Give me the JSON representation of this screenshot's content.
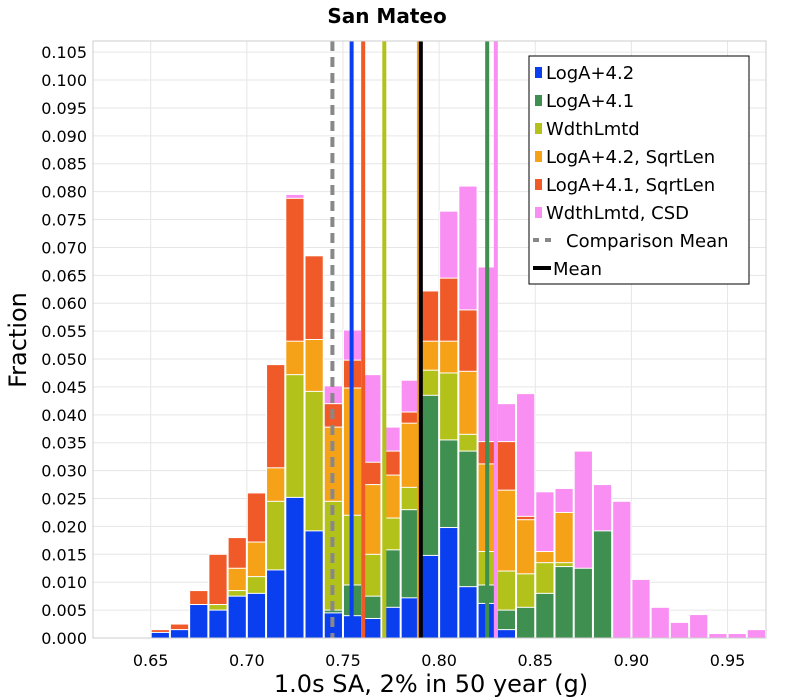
{
  "chart_data": {
    "type": "bar",
    "title": "San Mateo",
    "xlabel": "1.0s SA, 2% in 50 year (g)",
    "ylabel": "Fraction",
    "xlim": [
      0.62,
      0.97
    ],
    "ylim": [
      0.0,
      0.107
    ],
    "bin_width": 0.01,
    "xticks": [
      "0.65",
      "0.70",
      "0.75",
      "0.80",
      "0.85",
      "0.90",
      "0.95"
    ],
    "yticks": [
      "0.000",
      "0.005",
      "0.010",
      "0.015",
      "0.020",
      "0.025",
      "0.030",
      "0.035",
      "0.040",
      "0.045",
      "0.050",
      "0.055",
      "0.060",
      "0.065",
      "0.070",
      "0.075",
      "0.080",
      "0.085",
      "0.090",
      "0.095",
      "0.100",
      "0.105"
    ],
    "grid": true,
    "legend_position": "top-right",
    "colors": {
      "LogA+4.2": "#0a3ff0",
      "LogA+4.1": "#3f8f50",
      "WdthLmtd": "#b3c21a",
      "LogA+4.2, SqrtLen": "#f5a219",
      "LogA+4.1, SqrtLen": "#f05a28",
      "WdthLmtd, CSD": "#f98ff2",
      "Comparison Mean": "#888888",
      "Mean": "#000000"
    },
    "series": [
      {
        "name": "LogA+4.2",
        "bins": [
          [
            0.655,
            0.001
          ],
          [
            0.665,
            0.0015
          ],
          [
            0.675,
            0.006
          ],
          [
            0.685,
            0.005
          ],
          [
            0.695,
            0.0075
          ],
          [
            0.705,
            0.008
          ],
          [
            0.715,
            0.0122
          ],
          [
            0.725,
            0.0252
          ],
          [
            0.735,
            0.0192
          ],
          [
            0.745,
            0.0045
          ],
          [
            0.755,
            0.004
          ],
          [
            0.765,
            0.0035
          ],
          [
            0.775,
            0.0055
          ],
          [
            0.785,
            0.0072
          ],
          [
            0.795,
            0.0148
          ],
          [
            0.805,
            0.0198
          ],
          [
            0.815,
            0.0092
          ],
          [
            0.825,
            0.0062
          ],
          [
            0.835,
            0.0015
          ]
        ]
      },
      {
        "name": "LogA+4.1",
        "bins": [
          [
            0.745,
            0.005
          ],
          [
            0.755,
            0.0095
          ],
          [
            0.765,
            0.0075
          ],
          [
            0.775,
            0.0158
          ],
          [
            0.785,
            0.023
          ],
          [
            0.795,
            0.0435
          ],
          [
            0.805,
            0.0355
          ],
          [
            0.815,
            0.0335
          ],
          [
            0.825,
            0.0095
          ],
          [
            0.835,
            0.005
          ],
          [
            0.845,
            0.0055
          ],
          [
            0.855,
            0.008
          ],
          [
            0.865,
            0.0128
          ],
          [
            0.875,
            0.0125
          ],
          [
            0.885,
            0.0192
          ]
        ]
      },
      {
        "name": "WdthLmtd",
        "bins": [
          [
            0.685,
            0.006
          ],
          [
            0.695,
            0.0085
          ],
          [
            0.705,
            0.011
          ],
          [
            0.715,
            0.0245
          ],
          [
            0.725,
            0.0472
          ],
          [
            0.735,
            0.0442
          ],
          [
            0.745,
            0.0245
          ],
          [
            0.755,
            0.022
          ],
          [
            0.765,
            0.015
          ],
          [
            0.775,
            0.0215
          ],
          [
            0.785,
            0.027
          ],
          [
            0.795,
            0.048
          ],
          [
            0.805,
            0.0475
          ],
          [
            0.815,
            0.0365
          ],
          [
            0.825,
            0.0155
          ],
          [
            0.835,
            0.012
          ],
          [
            0.845,
            0.0115
          ],
          [
            0.855,
            0.0135
          ],
          [
            0.865,
            0.0135
          ]
        ]
      },
      {
        "name": "LogA+4.2, SqrtLen",
        "bins": [
          [
            0.685,
            0.006
          ],
          [
            0.695,
            0.0125
          ],
          [
            0.705,
            0.0172
          ],
          [
            0.715,
            0.0305
          ],
          [
            0.725,
            0.0532
          ],
          [
            0.735,
            0.0535
          ],
          [
            0.745,
            0.0378
          ],
          [
            0.755,
            0.0448
          ],
          [
            0.765,
            0.0275
          ],
          [
            0.775,
            0.0292
          ],
          [
            0.785,
            0.0385
          ],
          [
            0.795,
            0.0532
          ],
          [
            0.805,
            0.0532
          ],
          [
            0.815,
            0.0478
          ],
          [
            0.825,
            0.0312
          ],
          [
            0.835,
            0.0265
          ],
          [
            0.845,
            0.0212
          ],
          [
            0.855,
            0.0155
          ],
          [
            0.865,
            0.0225
          ]
        ]
      },
      {
        "name": "LogA+4.1, SqrtLen",
        "bins": [
          [
            0.655,
            0.0015
          ],
          [
            0.665,
            0.0025
          ],
          [
            0.675,
            0.0085
          ],
          [
            0.685,
            0.015
          ],
          [
            0.695,
            0.018
          ],
          [
            0.705,
            0.026
          ],
          [
            0.715,
            0.049
          ],
          [
            0.725,
            0.0788
          ],
          [
            0.735,
            0.0685
          ],
          [
            0.745,
            0.042
          ],
          [
            0.755,
            0.0498
          ],
          [
            0.765,
            0.0315
          ],
          [
            0.775,
            0.0335
          ],
          [
            0.785,
            0.0405
          ],
          [
            0.795,
            0.0622
          ],
          [
            0.805,
            0.0645
          ],
          [
            0.815,
            0.0588
          ],
          [
            0.825,
            0.0352
          ],
          [
            0.835,
            0.0352
          ],
          [
            0.845,
            0.0218
          ]
        ]
      },
      {
        "name": "WdthLmtd, CSD",
        "bins": [
          [
            0.725,
            0.0795
          ],
          [
            0.735,
            0.0685
          ],
          [
            0.745,
            0.0452
          ],
          [
            0.755,
            0.0552
          ],
          [
            0.765,
            0.0472
          ],
          [
            0.775,
            0.0378
          ],
          [
            0.785,
            0.0462
          ],
          [
            0.795,
            0.0588
          ],
          [
            0.805,
            0.0765
          ],
          [
            0.815,
            0.081
          ],
          [
            0.825,
            0.0665
          ],
          [
            0.835,
            0.042
          ],
          [
            0.845,
            0.0438
          ],
          [
            0.855,
            0.0262
          ],
          [
            0.865,
            0.0268
          ],
          [
            0.875,
            0.0335
          ],
          [
            0.885,
            0.0275
          ],
          [
            0.895,
            0.0245
          ],
          [
            0.905,
            0.0105
          ],
          [
            0.915,
            0.0055
          ],
          [
            0.925,
            0.0028
          ],
          [
            0.935,
            0.0042
          ],
          [
            0.945,
            0.0008
          ],
          [
            0.955,
            0.0008
          ],
          [
            0.965,
            0.0015
          ]
        ]
      }
    ],
    "mean_lines": [
      {
        "name": "LogA+4.2",
        "x": 0.7545,
        "style": "solid"
      },
      {
        "name": "WdthLmtd",
        "x": 0.7715,
        "style": "solid"
      },
      {
        "name": "LogA+4.2, SqrtLen",
        "x": 0.7895,
        "style": "solid"
      },
      {
        "name": "LogA+4.1",
        "x": 0.825,
        "style": "solid"
      },
      {
        "name": "WdthLmtd, CSD",
        "x": 0.8295,
        "style": "solid"
      },
      {
        "name": "LogA+4.1, SqrtLen",
        "x": 0.7605,
        "style": "solid"
      },
      {
        "name": "Comparison Mean",
        "x": 0.7445,
        "style": "dashed"
      },
      {
        "name": "Mean",
        "x": 0.7905,
        "style": "solid"
      }
    ],
    "legend": [
      {
        "label": "LogA+4.2",
        "kind": "box"
      },
      {
        "label": "LogA+4.1",
        "kind": "box"
      },
      {
        "label": "WdthLmtd",
        "kind": "box"
      },
      {
        "label": "LogA+4.2, SqrtLen",
        "kind": "box"
      },
      {
        "label": "LogA+4.1, SqrtLen",
        "kind": "box"
      },
      {
        "label": "WdthLmtd, CSD",
        "kind": "box"
      },
      {
        "label": "Comparison Mean",
        "kind": "dash"
      },
      {
        "label": "Mean",
        "kind": "line"
      }
    ]
  }
}
